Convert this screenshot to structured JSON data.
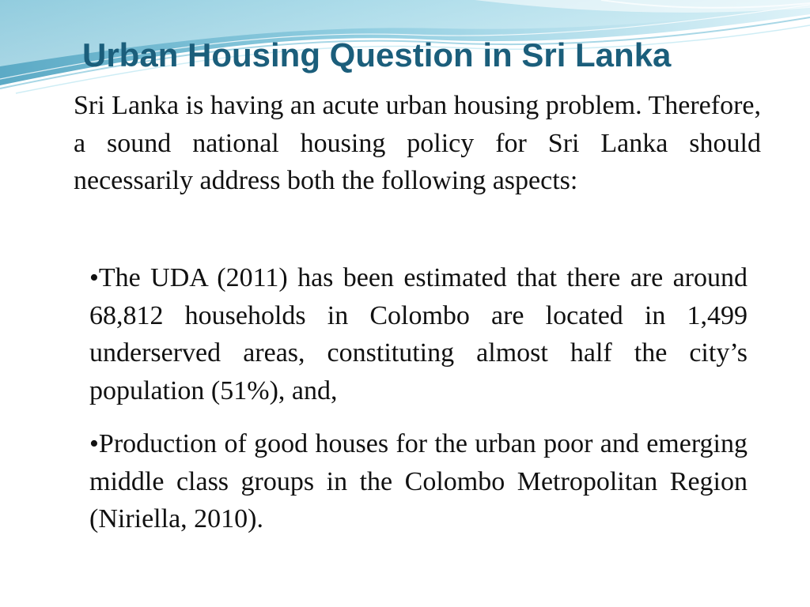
{
  "slide": {
    "title": "Urban Housing Question in Sri Lanka",
    "intro": "Sri Lanka is having an acute urban housing problem. Therefore, a sound national housing policy for Sri Lanka should necessarily address both the following aspects:",
    "bullets": [
      "•The UDA (2011) has been estimated that there are around 68,812 households in Colombo are located in 1,499 underserved areas, constituting almost half the city’s population (51%), and,",
      "•Production of good houses for the urban poor and emerging middle class groups in the Colombo Metropolitan Region (Niriella, 2010)."
    ]
  },
  "colors": {
    "title": "#1b5e7b",
    "text": "#111111",
    "wave_light": "#bfe6f2",
    "wave_mid": "#7fc6dc",
    "wave_dark": "#3f9bbb"
  }
}
